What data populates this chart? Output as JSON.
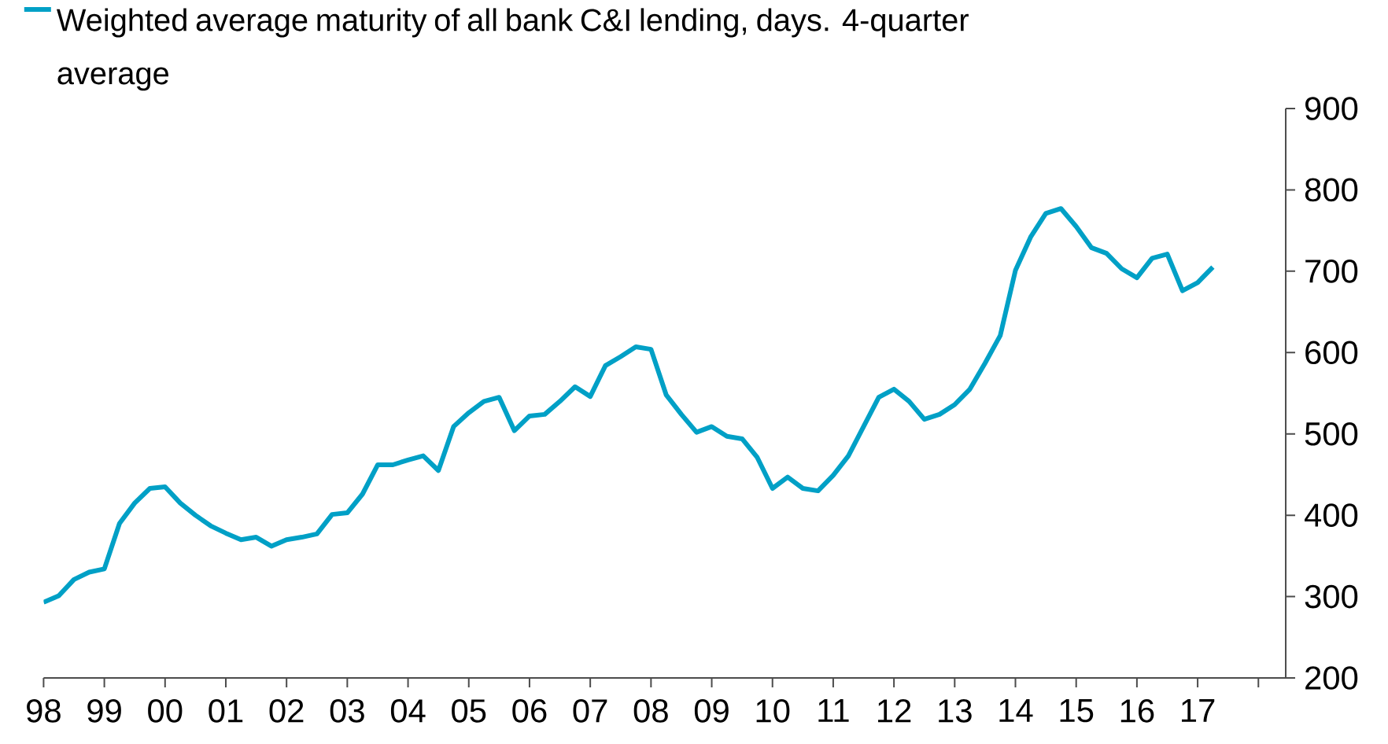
{
  "chart_data": {
    "type": "line",
    "x": [
      1998,
      1998.25,
      1998.5,
      1998.75,
      1999,
      1999.25,
      1999.5,
      1999.75,
      2000,
      2000.25,
      2000.5,
      2000.75,
      2001,
      2001.25,
      2001.5,
      2001.75,
      2002,
      2002.25,
      2002.5,
      2002.75,
      2003,
      2003.25,
      2003.5,
      2003.75,
      2004,
      2004.25,
      2004.5,
      2004.75,
      2005,
      2005.25,
      2005.5,
      2005.75,
      2006,
      2006.25,
      2006.5,
      2006.75,
      2007,
      2007.25,
      2007.5,
      2007.75,
      2008,
      2008.25,
      2008.5,
      2008.75,
      2009,
      2009.25,
      2009.5,
      2009.75,
      2010,
      2010.25,
      2010.5,
      2010.75,
      2011,
      2011.25,
      2011.5,
      2011.75,
      2012,
      2012.25,
      2012.5,
      2012.75,
      2013,
      2013.25,
      2013.5,
      2013.75,
      2014,
      2014.25,
      2014.5,
      2014.75,
      2015,
      2015.25,
      2015.5,
      2015.75,
      2016,
      2016.25,
      2016.5,
      2016.75,
      2017,
      2017.25
    ],
    "series": [
      {
        "name": "Weighted average maturity of all bank C&I lending, days. 4-quarter average",
        "color": "#00a0c6",
        "values": [
          293,
          301,
          321,
          330,
          334,
          390,
          415,
          433,
          435,
          415,
          400,
          387,
          378,
          370,
          373,
          362,
          370,
          373,
          377,
          401,
          403,
          426,
          462,
          462,
          468,
          473,
          455,
          509,
          526,
          540,
          545,
          504,
          522,
          524,
          540,
          558,
          546,
          584,
          595,
          607,
          604,
          548,
          524,
          502,
          509,
          497,
          494,
          471,
          433,
          447,
          433,
          430,
          449,
          473,
          509,
          545,
          555,
          540,
          518,
          524,
          536,
          555,
          587,
          621,
          701,
          742,
          771,
          777,
          755,
          729,
          722,
          703,
          692,
          716,
          721,
          676,
          686,
          705
        ]
      }
    ],
    "xlim": [
      1998,
      2018.45
    ],
    "ylim": [
      200,
      900
    ],
    "xticks": [
      {
        "value": 1998,
        "label": "98"
      },
      {
        "value": 1999,
        "label": "99"
      },
      {
        "value": 2000,
        "label": "00"
      },
      {
        "value": 2001,
        "label": "01"
      },
      {
        "value": 2002,
        "label": "02"
      },
      {
        "value": 2003,
        "label": "03"
      },
      {
        "value": 2004,
        "label": "04"
      },
      {
        "value": 2005,
        "label": "05"
      },
      {
        "value": 2006,
        "label": "06"
      },
      {
        "value": 2007,
        "label": "07"
      },
      {
        "value": 2008,
        "label": "08"
      },
      {
        "value": 2009,
        "label": "09"
      },
      {
        "value": 2010,
        "label": "10"
      },
      {
        "value": 2011,
        "label": "11"
      },
      {
        "value": 2012,
        "label": "12"
      },
      {
        "value": 2013,
        "label": "13"
      },
      {
        "value": 2014,
        "label": "14"
      },
      {
        "value": 2015,
        "label": "15"
      },
      {
        "value": 2016,
        "label": "16"
      },
      {
        "value": 2017,
        "label": "17"
      },
      {
        "value": 2018,
        "label": null
      }
    ],
    "yticks": [
      200,
      300,
      400,
      500,
      600,
      700,
      800,
      900
    ],
    "legend": "top left"
  }
}
